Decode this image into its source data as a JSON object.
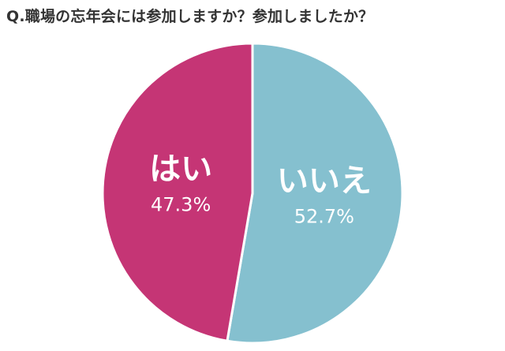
{
  "chart_data": {
    "type": "pie",
    "title": "Q.職場の忘年会には参加しますか？参加しましたか？",
    "slices": [
      {
        "label": "いいえ",
        "value": 52.7,
        "value_text": "52.7%",
        "color": "#85C0CF"
      },
      {
        "label": "はい",
        "value": 47.3,
        "value_text": "47.3%",
        "color": "#C53575"
      }
    ],
    "start": "12 o'clock",
    "direction": "clockwise",
    "legend": "none",
    "labels": "inside slices"
  }
}
